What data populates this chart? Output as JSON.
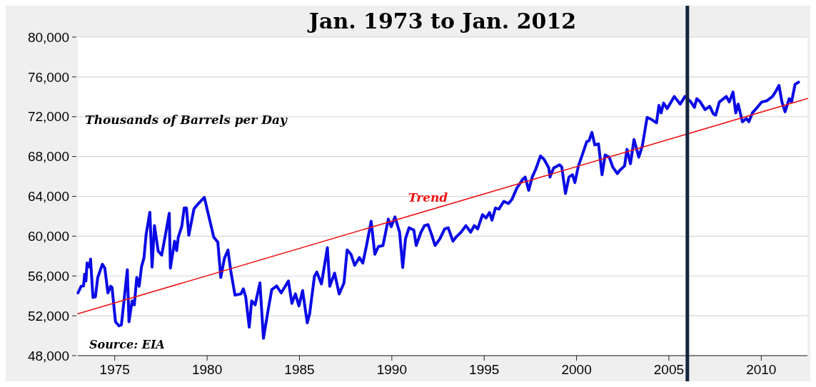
{
  "chart_data": {
    "type": "line",
    "title": "Jan. 1973 to Jan. 2012",
    "ylabel": "Thousands of Barrels per Day",
    "annotations": [
      "Source: EIA"
    ],
    "xlim": [
      1973,
      2012.5
    ],
    "xticks": [
      1975,
      1980,
      1985,
      1990,
      1995,
      2000,
      2005,
      2010
    ],
    "ylim": [
      48000,
      80000
    ],
    "yticks": [
      {
        "value": 48000,
        "label": "48,000"
      },
      {
        "value": 52000,
        "label": "52,000"
      },
      {
        "value": 56000,
        "label": "56,000"
      },
      {
        "value": 60000,
        "label": "60,000"
      },
      {
        "value": 64000,
        "label": "64,000"
      },
      {
        "value": 68000,
        "label": "68,000"
      },
      {
        "value": 72000,
        "label": "72,000"
      },
      {
        "value": 76000,
        "label": "76,000"
      },
      {
        "value": 80000,
        "label": "80,000"
      }
    ],
    "grid": "y",
    "marker": "none",
    "line_style": "solid",
    "ref_lines": [
      {
        "axis": "x",
        "value": 2006,
        "color": "#14263f"
      }
    ],
    "series": [
      {
        "color": "#0a0ae6",
        "x": [
          1973.01,
          1973.18,
          1973.31,
          1973.37,
          1973.44,
          1973.5,
          1973.63,
          1973.69,
          1973.82,
          1973.95,
          1974.08,
          1974.33,
          1974.46,
          1974.63,
          1974.78,
          1974.85,
          1975.04,
          1975.23,
          1975.36,
          1975.68,
          1975.77,
          1975.94,
          1976.06,
          1976.19,
          1976.32,
          1976.45,
          1976.58,
          1976.7,
          1976.9,
          1977.02,
          1977.15,
          1977.35,
          1977.54,
          1977.73,
          1977.95,
          1978.01,
          1978.24,
          1978.35,
          1978.44,
          1978.63,
          1978.76,
          1978.88,
          1979.01,
          1979.29,
          1979.53,
          1979.85,
          1980.04,
          1980.36,
          1980.58,
          1980.74,
          1980.94,
          1981.13,
          1981.29,
          1981.51,
          1981.83,
          1981.96,
          1982.09,
          1982.28,
          1982.41,
          1982.6,
          1982.86,
          1983.05,
          1983.31,
          1983.5,
          1983.76,
          1984.01,
          1984.4,
          1984.59,
          1984.78,
          1984.97,
          1985.17,
          1985.42,
          1985.55,
          1985.81,
          1985.94,
          1986.19,
          1986.51,
          1986.64,
          1986.9,
          1987.15,
          1987.41,
          1987.58,
          1987.79,
          1987.99,
          1988.24,
          1988.43,
          1988.63,
          1988.88,
          1989.08,
          1989.27,
          1989.52,
          1989.81,
          1989.97,
          1990.17,
          1990.42,
          1990.59,
          1990.74,
          1990.93,
          1991.19,
          1991.32,
          1991.58,
          1991.77,
          1991.96,
          1992.15,
          1992.34,
          1992.6,
          1992.86,
          1993.05,
          1993.31,
          1993.5,
          1993.75,
          1994.01,
          1994.27,
          1994.46,
          1994.65,
          1994.91,
          1995.1,
          1995.29,
          1995.42,
          1995.61,
          1995.8,
          1996.06,
          1996.32,
          1996.51,
          1996.77,
          1997.09,
          1997.22,
          1997.41,
          1997.6,
          1997.79,
          1998.05,
          1998.24,
          1998.5,
          1998.56,
          1998.76,
          1999.08,
          1999.2,
          1999.4,
          1999.59,
          1999.78,
          1999.91,
          2000.1,
          2000.29,
          2000.55,
          2000.68,
          2000.83,
          2000.99,
          2001.19,
          2001.38,
          2001.55,
          2001.77,
          2001.96,
          2002.21,
          2002.34,
          2002.6,
          2002.73,
          2002.92,
          2003.11,
          2003.37,
          2003.56,
          2003.82,
          2004.07,
          2004.33,
          2004.46,
          2004.58,
          2004.71,
          2004.91,
          2005.29,
          2005.61,
          2005.87,
          2006.19,
          2006.38,
          2006.51,
          2006.7,
          2006.96,
          2007.21,
          2007.41,
          2007.53,
          2007.73,
          2008.11,
          2008.27,
          2008.47,
          2008.62,
          2008.75,
          2008.98,
          2009.2,
          2009.33,
          2009.52,
          2009.78,
          2010.03,
          2010.29,
          2010.61,
          2010.8,
          2010.96,
          2011.12,
          2011.29,
          2011.51,
          2011.64,
          2011.83,
          2012.02
        ],
        "values": [
          54300,
          54970,
          55000,
          56180,
          55500,
          57300,
          56900,
          57700,
          53850,
          53900,
          55850,
          57180,
          56800,
          54300,
          54970,
          54850,
          51400,
          51000,
          51100,
          56630,
          51400,
          53500,
          53100,
          55850,
          54970,
          56950,
          57800,
          60200,
          62400,
          56900,
          61060,
          58500,
          58100,
          60000,
          62300,
          56800,
          59500,
          58550,
          59900,
          61000,
          62840,
          62840,
          60100,
          62750,
          63280,
          63900,
          62400,
          59900,
          59400,
          55850,
          57800,
          58600,
          56400,
          54080,
          54200,
          54700,
          53900,
          50860,
          53500,
          53100,
          55300,
          49750,
          52650,
          54630,
          55000,
          54300,
          55500,
          53250,
          54200,
          53000,
          54530,
          51300,
          52200,
          55960,
          56400,
          55200,
          58840,
          54970,
          56290,
          54200,
          55300,
          58620,
          58180,
          57070,
          57850,
          57300,
          59060,
          61500,
          58180,
          58950,
          59060,
          61720,
          60950,
          61940,
          60400,
          56850,
          59730,
          60840,
          60620,
          59060,
          60400,
          61060,
          61160,
          60180,
          59060,
          59730,
          60730,
          60840,
          59500,
          59950,
          60400,
          61060,
          60400,
          61060,
          60730,
          62160,
          61830,
          62380,
          61600,
          62830,
          62720,
          63500,
          63280,
          63720,
          64830,
          65720,
          65940,
          64610,
          65940,
          66720,
          68050,
          67720,
          66840,
          65940,
          66840,
          67170,
          66950,
          64280,
          65940,
          66170,
          65390,
          67050,
          68050,
          69490,
          69600,
          70420,
          69160,
          69270,
          66170,
          68160,
          67940,
          66950,
          66280,
          66610,
          67050,
          68720,
          67280,
          69710,
          67940,
          69050,
          71930,
          71710,
          71380,
          73150,
          72380,
          73370,
          72820,
          74030,
          73260,
          74030,
          73480,
          72930,
          73810,
          73480,
          72710,
          73040,
          72270,
          72160,
          73480,
          74030,
          73480,
          74480,
          72380,
          73260,
          71490,
          71820,
          71490,
          72380,
          72930,
          73480,
          73590,
          74030,
          74590,
          75140,
          73480,
          72490,
          73810,
          73480,
          75250,
          75470
        ]
      },
      {
        "name": "Trend",
        "color": "#ee1111",
        "x": [
          1973,
          2012.5
        ],
        "values": [
          52200,
          73830
        ]
      }
    ]
  }
}
